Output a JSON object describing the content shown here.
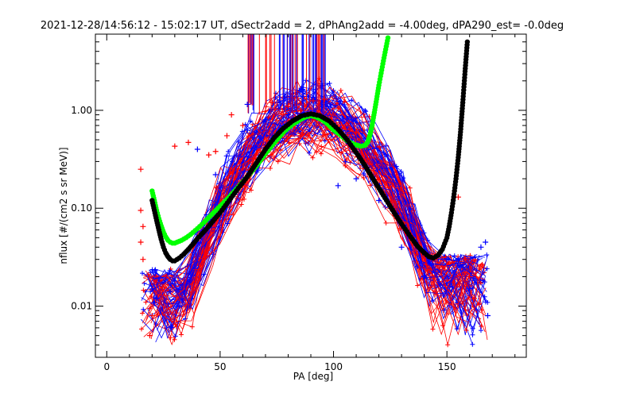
{
  "chart_data": {
    "type": "line",
    "title": "2021-12-28/14:56:12 - 15:02:17 UT, dSectr2add = 2, dPhAng2add = -4.00deg, dPA290_est=  -0.0deg",
    "xlabel": "PA [deg]",
    "ylabel": "nflux [#/(cm2 s sr MeV)]",
    "xlim": [
      -5,
      185
    ],
    "ylim": [
      0.003,
      6.0
    ],
    "yscale": "log",
    "grid": false,
    "x_ticks": [
      0,
      50,
      100,
      150
    ],
    "x_tick_labels": [
      "0",
      "50",
      "100",
      "150"
    ],
    "y_ticks": [
      0.01,
      0.1,
      1.0
    ],
    "y_tick_labels": [
      "0.01",
      "0.10",
      "1.00"
    ],
    "colors": {
      "red": "#ff0000",
      "blue": "#0000ff",
      "green": "#00ff00",
      "black": "#000000"
    },
    "series": [
      {
        "color": "green",
        "style": "dots",
        "points": [
          [
            20,
            0.15
          ],
          [
            21,
            0.12
          ],
          [
            22,
            0.095
          ],
          [
            23,
            0.078
          ],
          [
            24,
            0.066
          ],
          [
            25,
            0.057
          ],
          [
            26,
            0.051
          ],
          [
            27,
            0.047
          ],
          [
            28,
            0.045
          ],
          [
            29,
            0.044
          ],
          [
            30,
            0.044
          ],
          [
            31,
            0.045
          ],
          [
            32,
            0.046
          ],
          [
            33,
            0.047
          ],
          [
            35,
            0.05
          ],
          [
            37,
            0.054
          ],
          [
            40,
            0.062
          ],
          [
            43,
            0.072
          ],
          [
            46,
            0.085
          ],
          [
            50,
            0.105
          ],
          [
            54,
            0.13
          ],
          [
            58,
            0.165
          ],
          [
            62,
            0.21
          ],
          [
            66,
            0.27
          ],
          [
            70,
            0.36
          ],
          [
            74,
            0.47
          ],
          [
            78,
            0.6
          ],
          [
            82,
            0.72
          ],
          [
            86,
            0.82
          ],
          [
            88,
            0.86
          ],
          [
            90,
            0.88
          ],
          [
            92,
            0.86
          ],
          [
            94,
            0.82
          ],
          [
            96,
            0.77
          ],
          [
            98,
            0.7
          ],
          [
            100,
            0.63
          ],
          [
            103,
            0.56
          ],
          [
            106,
            0.49
          ],
          [
            109,
            0.45
          ],
          [
            112,
            0.43
          ],
          [
            114,
            0.44
          ],
          [
            115,
            0.47
          ],
          [
            116,
            0.55
          ],
          [
            117,
            0.7
          ],
          [
            118,
            0.95
          ],
          [
            119,
            1.3
          ],
          [
            120,
            1.8
          ],
          [
            121,
            2.4
          ],
          [
            122,
            3.2
          ],
          [
            123,
            4.2
          ],
          [
            124,
            5.5
          ]
        ]
      },
      {
        "color": "black",
        "style": "dots",
        "points": [
          [
            20,
            0.12
          ],
          [
            21,
            0.095
          ],
          [
            22,
            0.075
          ],
          [
            23,
            0.06
          ],
          [
            24,
            0.048
          ],
          [
            25,
            0.04
          ],
          [
            26,
            0.035
          ],
          [
            27,
            0.032
          ],
          [
            28,
            0.03
          ],
          [
            29,
            0.029
          ],
          [
            30,
            0.029
          ],
          [
            31,
            0.03
          ],
          [
            32,
            0.031
          ],
          [
            34,
            0.034
          ],
          [
            36,
            0.038
          ],
          [
            38,
            0.043
          ],
          [
            40,
            0.049
          ],
          [
            43,
            0.058
          ],
          [
            46,
            0.07
          ],
          [
            50,
            0.09
          ],
          [
            54,
            0.12
          ],
          [
            58,
            0.16
          ],
          [
            62,
            0.21
          ],
          [
            66,
            0.29
          ],
          [
            70,
            0.4
          ],
          [
            74,
            0.53
          ],
          [
            78,
            0.66
          ],
          [
            82,
            0.78
          ],
          [
            86,
            0.88
          ],
          [
            90,
            0.92
          ],
          [
            94,
            0.88
          ],
          [
            98,
            0.78
          ],
          [
            102,
            0.64
          ],
          [
            106,
            0.5
          ],
          [
            110,
            0.37
          ],
          [
            114,
            0.27
          ],
          [
            118,
            0.19
          ],
          [
            122,
            0.135
          ],
          [
            126,
            0.096
          ],
          [
            130,
            0.069
          ],
          [
            134,
            0.051
          ],
          [
            137,
            0.041
          ],
          [
            140,
            0.035
          ],
          [
            142,
            0.032
          ],
          [
            144,
            0.031
          ],
          [
            146,
            0.033
          ],
          [
            148,
            0.038
          ],
          [
            150,
            0.05
          ],
          [
            151,
            0.065
          ],
          [
            152,
            0.09
          ],
          [
            153,
            0.13
          ],
          [
            154,
            0.2
          ],
          [
            155,
            0.33
          ],
          [
            156,
            0.6
          ],
          [
            157,
            1.2
          ],
          [
            158,
            2.5
          ],
          [
            159,
            5.0
          ]
        ]
      }
    ],
    "scatter_clusters": {
      "red": [
        [
          15,
          0.25
        ],
        [
          15,
          0.095
        ],
        [
          16,
          0.065
        ],
        [
          15,
          0.045
        ],
        [
          16,
          0.03
        ],
        [
          19,
          0.005
        ],
        [
          20,
          0.008
        ],
        [
          30,
          0.43
        ],
        [
          36,
          0.47
        ],
        [
          45,
          0.35
        ],
        [
          48,
          0.38
        ],
        [
          53,
          0.55
        ],
        [
          55,
          0.9
        ],
        [
          60,
          0.7
        ],
        [
          73,
          1.2
        ],
        [
          80,
          1.1
        ],
        [
          91,
          1.25
        ],
        [
          96,
          1.3
        ],
        [
          102,
          1.05
        ],
        [
          110,
          0.6
        ],
        [
          115,
          0.32
        ],
        [
          125,
          0.1
        ],
        [
          135,
          0.05
        ],
        [
          155,
          0.13
        ],
        [
          158,
          0.03
        ],
        [
          160,
          0.02
        ],
        [
          162,
          0.012
        ]
      ],
      "blue": [
        [
          20,
          0.015
        ],
        [
          22,
          0.012
        ],
        [
          28,
          0.014
        ],
        [
          32,
          0.01
        ],
        [
          40,
          0.4
        ],
        [
          48,
          0.22
        ],
        [
          62,
          1.15
        ],
        [
          70,
          0.8
        ],
        [
          80,
          0.9
        ],
        [
          90,
          0.95
        ],
        [
          102,
          0.17
        ],
        [
          110,
          0.2
        ],
        [
          120,
          0.12
        ],
        [
          130,
          0.04
        ],
        [
          140,
          0.02
        ],
        [
          150,
          0.03
        ],
        [
          160,
          0.015
        ],
        [
          165,
          0.04
        ],
        [
          167,
          0.045
        ],
        [
          168,
          0.008
        ]
      ]
    }
  }
}
